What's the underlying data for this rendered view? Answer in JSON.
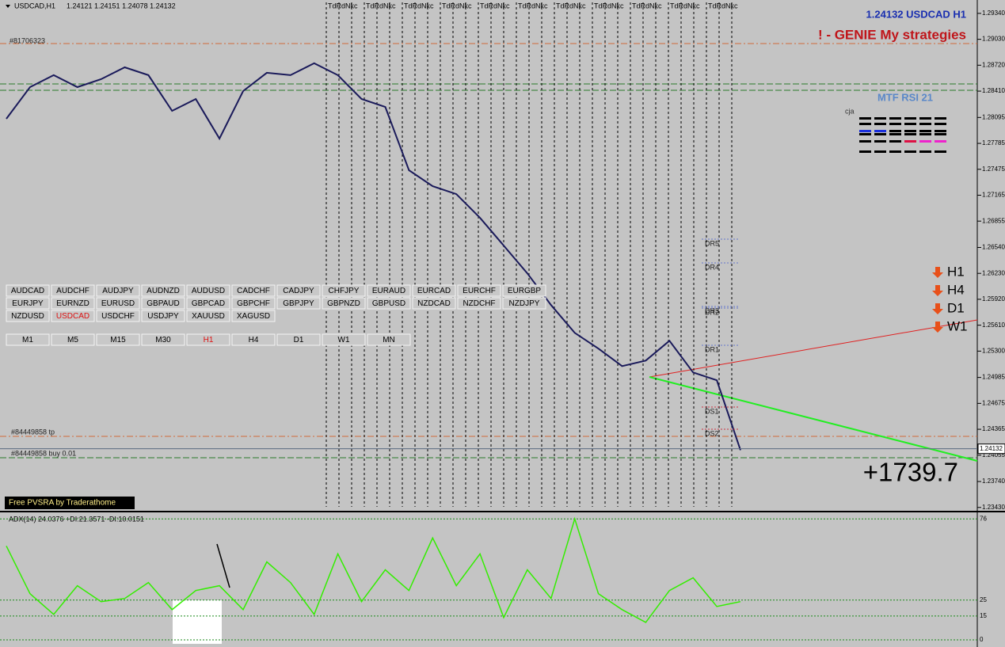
{
  "header": {
    "symbol": "USDCAD,H1",
    "ohlc": "1.24121 1.24151 1.24078 1.24132"
  },
  "top_right": {
    "quote": "1.24132 USDCAD H1",
    "strategy": "! - GENIE My strategies"
  },
  "mtf_rsi": {
    "title": "MTF RSI  21",
    "author": "cja"
  },
  "orders": [
    "#81706323",
    "#84449858 tp",
    "#84449858 buy 0.01"
  ],
  "vline_label": "TdRdNkc",
  "symbols": [
    [
      {
        "label": "AUDCAD"
      },
      {
        "label": "AUDCHF"
      },
      {
        "label": "AUDJPY"
      },
      {
        "label": "AUDNZD"
      },
      {
        "label": "AUDUSD"
      },
      {
        "label": "CADCHF"
      },
      {
        "label": "CADJPY"
      },
      {
        "label": "CHFJPY"
      },
      {
        "label": "EURAUD"
      },
      {
        "label": "EURCAD"
      },
      {
        "label": "EURCHF"
      },
      {
        "label": "EURGBP"
      }
    ],
    [
      {
        "label": "EURJPY"
      },
      {
        "label": "EURNZD"
      },
      {
        "label": "EURUSD"
      },
      {
        "label": "GBPAUD"
      },
      {
        "label": "GBPCAD"
      },
      {
        "label": "GBPCHF"
      },
      {
        "label": "GBPJPY"
      },
      {
        "label": "GBPNZD"
      },
      {
        "label": "GBPUSD"
      },
      {
        "label": "NZDCAD"
      },
      {
        "label": "NZDCHF"
      },
      {
        "label": "NZDJPY"
      }
    ],
    [
      {
        "label": "NZDUSD"
      },
      {
        "label": "USDCAD",
        "active": true
      },
      {
        "label": "USDCHF"
      },
      {
        "label": "USDJPY"
      },
      {
        "label": "XAUUSD"
      },
      {
        "label": "XAGUSD"
      }
    ]
  ],
  "timeframes": [
    {
      "label": "M1"
    },
    {
      "label": "M5"
    },
    {
      "label": "M15"
    },
    {
      "label": "M30"
    },
    {
      "label": "H1",
      "active": true
    },
    {
      "label": "H4"
    },
    {
      "label": "D1"
    },
    {
      "label": "W1"
    },
    {
      "label": "MN"
    }
  ],
  "mtf_arrows": [
    "H1",
    "H4",
    "D1",
    "W1"
  ],
  "pivots": [
    "DR5",
    "DR4",
    "DR3",
    "DR2",
    "DR1",
    "DS1",
    "DS2"
  ],
  "profit": "+1739.7",
  "branding": "Free PVSRA by Traderathome",
  "price_chart": {
    "type": "line",
    "color": "#1a1a5a",
    "values": [
      1.28079,
      1.28458,
      1.28601,
      1.28458,
      1.28553,
      1.28695,
      1.28601,
      1.28174,
      1.28316,
      1.27842,
      1.28411,
      1.28629,
      1.28601,
      1.28743,
      1.28601,
      1.28316,
      1.28221,
      1.27463,
      1.27273,
      1.27178,
      1.26894,
      1.26562,
      1.2623,
      1.25851,
      1.25519,
      1.2533,
      1.25121,
      1.25187,
      1.25424,
      1.25045,
      1.24951,
      1.24116
    ],
    "ylim": [
      1.2339,
      1.295
    ],
    "yticks": [
      {
        "value": 1.2934,
        "label": "1.29340"
      },
      {
        "value": 1.2903,
        "label": "1.29030"
      },
      {
        "value": 1.2872,
        "label": "1.28720"
      },
      {
        "value": 1.2841,
        "label": "1.28410"
      },
      {
        "value": 1.28095,
        "label": "1.28095"
      },
      {
        "value": 1.27785,
        "label": "1.27785"
      },
      {
        "value": 1.27475,
        "label": "1.27475"
      },
      {
        "value": 1.27165,
        "label": "1.27165"
      },
      {
        "value": 1.26855,
        "label": "1.26855"
      },
      {
        "value": 1.2654,
        "label": "1.26540"
      },
      {
        "value": 1.2623,
        "label": "1.26230"
      },
      {
        "value": 1.2592,
        "label": "1.25920"
      },
      {
        "value": 1.2561,
        "label": "1.25610"
      },
      {
        "value": 1.253,
        "label": "1.25300"
      },
      {
        "value": 1.24985,
        "label": "1.24985"
      },
      {
        "value": 1.24675,
        "label": "1.24675"
      },
      {
        "value": 1.24365,
        "label": "1.24365"
      },
      {
        "value": 1.24055,
        "label": "1.24055"
      },
      {
        "value": 1.2374,
        "label": "1.23740"
      },
      {
        "value": 1.2343,
        "label": "1.23430"
      }
    ],
    "current": {
      "value": 1.24132,
      "label": "1.24132"
    }
  },
  "adx": {
    "type": "line",
    "color": "#33ee00",
    "label": "ADX(14) 24.0376 +DI:21.3571 -DI:10.0151",
    "values": [
      59,
      29,
      16,
      34,
      24,
      26,
      36,
      19,
      31,
      34,
      19,
      49,
      36,
      16,
      54,
      24,
      44,
      31,
      64,
      34,
      54,
      14,
      44,
      26,
      76,
      29,
      19,
      11,
      31,
      39,
      21,
      24
    ],
    "ylim": [
      -4.5,
      79.6
    ],
    "yticks": [
      76,
      25,
      15,
      0
    ]
  }
}
